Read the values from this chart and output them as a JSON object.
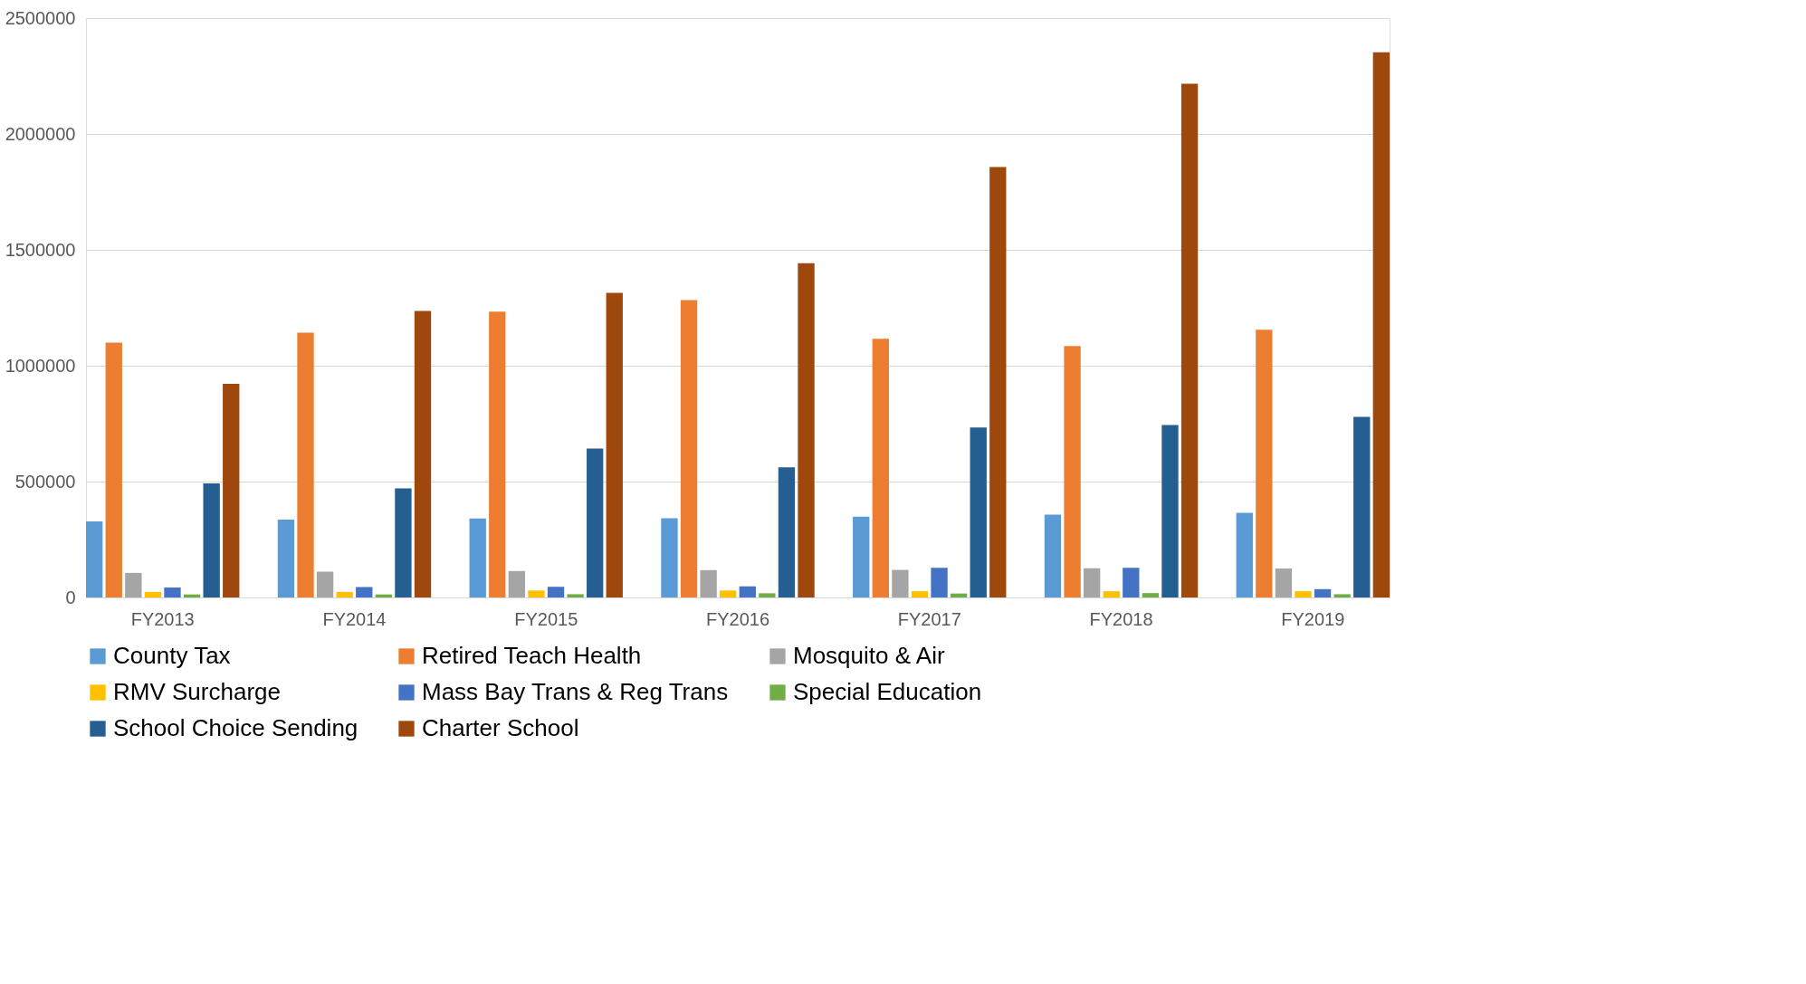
{
  "chart_data": {
    "type": "bar",
    "categories": [
      "FY2013",
      "FY2014",
      "FY2015",
      "FY2016",
      "FY2017",
      "FY2018",
      "FY2019"
    ],
    "series": [
      {
        "name": "County Tax",
        "color": "#5b9bd5",
        "values": [
          328000,
          336000,
          341000,
          342000,
          349000,
          357000,
          365000
        ]
      },
      {
        "name": "Retired Teach Health",
        "color": "#ed7d31",
        "values": [
          1100000,
          1143000,
          1233000,
          1283000,
          1116000,
          1085000,
          1155000
        ]
      },
      {
        "name": "Mosquito & Air",
        "color": "#a5a5a5",
        "values": [
          106000,
          111000,
          114000,
          118000,
          119000,
          126000,
          125000
        ]
      },
      {
        "name": "RMV Surcharge",
        "color": "#ffc000",
        "values": [
          24000,
          24000,
          30000,
          30000,
          27000,
          27000,
          27000
        ]
      },
      {
        "name": "Mass Bay Trans & Reg Trans",
        "color": "#4472c4",
        "values": [
          43000,
          45000,
          46000,
          48000,
          128000,
          128000,
          36000
        ]
      },
      {
        "name": "Special Education",
        "color": "#70ad47",
        "values": [
          13000,
          13000,
          14000,
          18000,
          17000,
          19000,
          14000
        ]
      },
      {
        "name": "School Choice Sending",
        "color": "#255e91",
        "values": [
          492000,
          471000,
          643000,
          562000,
          733000,
          744000,
          779000
        ]
      },
      {
        "name": "Charter School",
        "color": "#9e480e",
        "values": [
          922000,
          1236000,
          1314000,
          1442000,
          1857000,
          2217000,
          2353000
        ]
      }
    ],
    "ylim": [
      0,
      2500000
    ],
    "yticks": [
      0,
      500000,
      1000000,
      1500000,
      2000000,
      2500000
    ],
    "grid": "y",
    "legend": "bottom"
  }
}
